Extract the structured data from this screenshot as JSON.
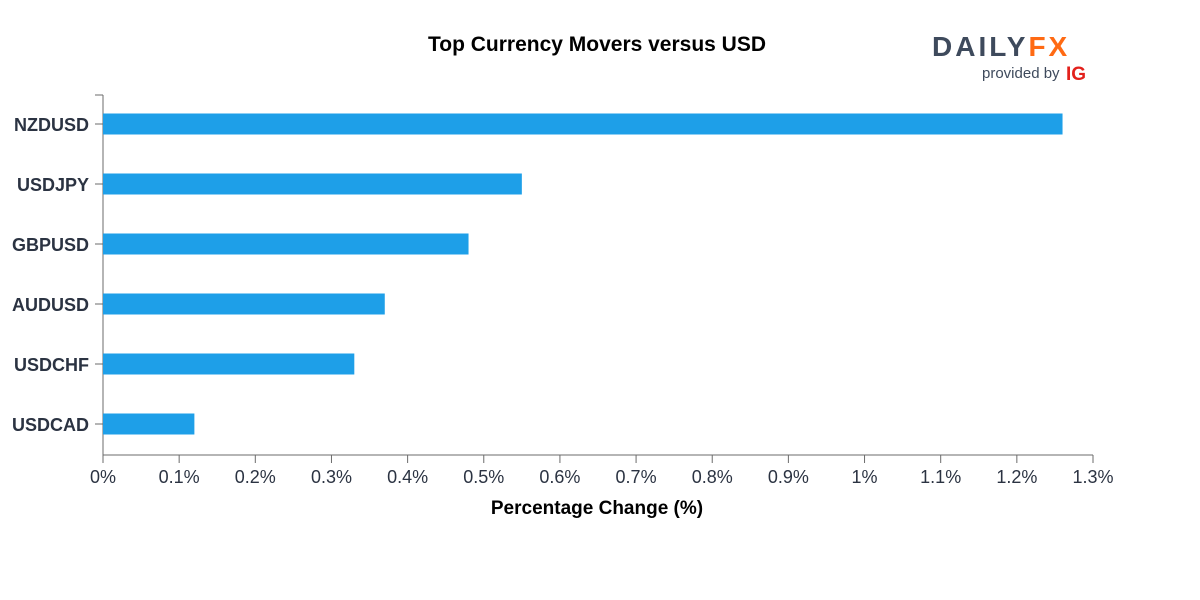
{
  "colors": {
    "bar": "#1e9fe8",
    "axis": "#6b6b6b",
    "text": "#2b3342",
    "logo_dark": "#3e4a5c",
    "logo_accent": "#ff6a13",
    "ig_red": "#e3211c"
  },
  "logo": {
    "main_left": "DAILY",
    "main_right": "FX",
    "sub": "provided by",
    "ig": "IG"
  },
  "chart_data": {
    "type": "bar",
    "orientation": "horizontal",
    "title": "Top Currency Movers versus USD",
    "xlabel": "Percentage Change (%)",
    "ylabel": "",
    "categories": [
      "NZDUSD",
      "USDJPY",
      "GBPUSD",
      "AUDUSD",
      "USDCHF",
      "USDCAD"
    ],
    "values": [
      1.26,
      0.55,
      0.48,
      0.37,
      0.33,
      0.12
    ],
    "xlim": [
      0,
      1.3
    ],
    "xticks": [
      "0%",
      "0.1%",
      "0.2%",
      "0.3%",
      "0.4%",
      "0.5%",
      "0.6%",
      "0.7%",
      "0.8%",
      "0.9%",
      "1%",
      "1.1%",
      "1.2%",
      "1.3%"
    ],
    "grid": false,
    "legend": "none"
  }
}
